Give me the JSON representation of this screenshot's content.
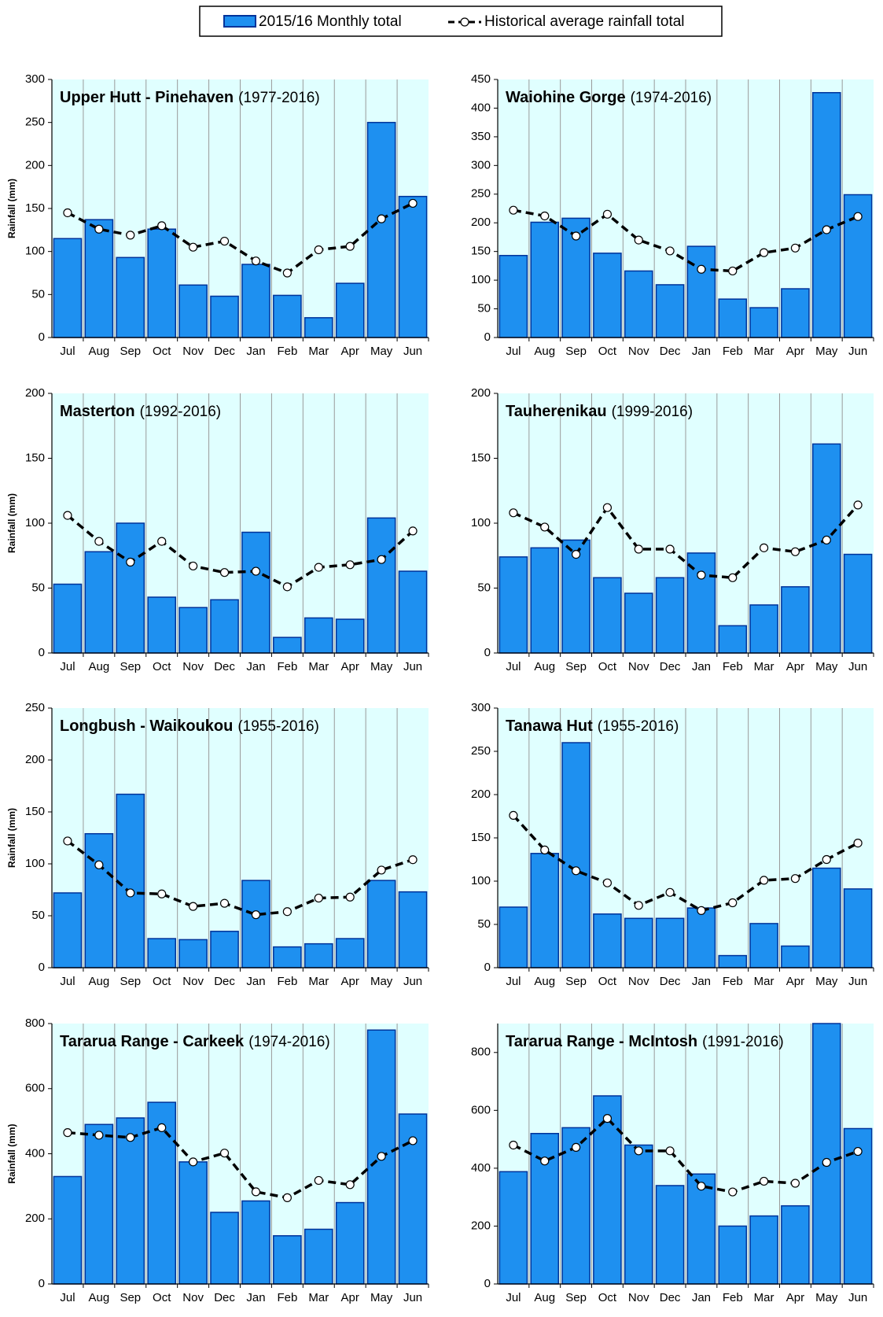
{
  "chart_data": [
    {
      "type": "bar",
      "title": "Upper Hutt - Pinehaven",
      "period": "(1977-2016)",
      "ylabel": "Rainfall (mm)",
      "categories": [
        "Jul",
        "Aug",
        "Sep",
        "Oct",
        "Nov",
        "Dec",
        "Jan",
        "Feb",
        "Mar",
        "Apr",
        "May",
        "Jun"
      ],
      "ylim": [
        0,
        300
      ],
      "yticks": [
        0,
        50,
        100,
        150,
        200,
        250,
        300
      ],
      "series": [
        {
          "name": "2015/16 Monthly total",
          "type": "bar",
          "color": "#1e90f0",
          "values": [
            115,
            137,
            93,
            126,
            61,
            48,
            85,
            49,
            23,
            63,
            250,
            164
          ]
        },
        {
          "name": "Historical average rainfall total",
          "type": "line",
          "color": "#000000",
          "values": [
            145,
            126,
            119,
            130,
            105,
            112,
            89,
            75,
            102,
            106,
            138,
            156
          ]
        }
      ]
    },
    {
      "type": "bar",
      "title": "Waiohine Gorge",
      "period": "(1974-2016)",
      "categories": [
        "Jul",
        "Aug",
        "Sep",
        "Oct",
        "Nov",
        "Dec",
        "Jan",
        "Feb",
        "Mar",
        "Apr",
        "May",
        "Jun"
      ],
      "ylim": [
        0,
        450
      ],
      "yticks": [
        0,
        50,
        100,
        150,
        200,
        250,
        300,
        350,
        400,
        450
      ],
      "series": [
        {
          "type": "bar",
          "color": "#1e90f0",
          "values": [
            143,
            201,
            208,
            147,
            116,
            92,
            159,
            67,
            52,
            85,
            427,
            249
          ]
        },
        {
          "type": "line",
          "color": "#000000",
          "values": [
            222,
            212,
            177,
            215,
            170,
            151,
            119,
            116,
            148,
            156,
            188,
            211
          ]
        }
      ]
    },
    {
      "type": "bar",
      "title": "Masterton",
      "period": "(1992-2016)",
      "ylabel": "Rainfall (mm)",
      "categories": [
        "Jul",
        "Aug",
        "Sep",
        "Oct",
        "Nov",
        "Dec",
        "Jan",
        "Feb",
        "Mar",
        "Apr",
        "May",
        "Jun"
      ],
      "ylim": [
        0,
        200
      ],
      "yticks": [
        0,
        50,
        100,
        150,
        200
      ],
      "series": [
        {
          "type": "bar",
          "color": "#1e90f0",
          "values": [
            53,
            78,
            100,
            43,
            35,
            41,
            93,
            12,
            27,
            26,
            104,
            63
          ]
        },
        {
          "type": "line",
          "color": "#000000",
          "values": [
            106,
            86,
            70,
            86,
            67,
            62,
            63,
            51,
            66,
            68,
            72,
            94
          ]
        }
      ]
    },
    {
      "type": "bar",
      "title": "Tauherenikau",
      "period": "(1999-2016)",
      "categories": [
        "Jul",
        "Aug",
        "Sep",
        "Oct",
        "Nov",
        "Dec",
        "Jan",
        "Feb",
        "Mar",
        "Apr",
        "May",
        "Jun"
      ],
      "ylim": [
        0,
        200
      ],
      "yticks": [
        0,
        50,
        100,
        150,
        200
      ],
      "series": [
        {
          "type": "bar",
          "color": "#1e90f0",
          "values": [
            74,
            81,
            87,
            58,
            46,
            58,
            77,
            21,
            37,
            51,
            161,
            76
          ]
        },
        {
          "type": "line",
          "color": "#000000",
          "values": [
            108,
            97,
            76,
            112,
            80,
            80,
            60,
            58,
            81,
            78,
            87,
            114
          ]
        }
      ]
    },
    {
      "type": "bar",
      "title": "Longbush - Waikoukou",
      "period": "(1955-2016)",
      "ylabel": "Rainfall (mm)",
      "categories": [
        "Jul",
        "Aug",
        "Sep",
        "Oct",
        "Nov",
        "Dec",
        "Jan",
        "Feb",
        "Mar",
        "Apr",
        "May",
        "Jun"
      ],
      "ylim": [
        0,
        250
      ],
      "yticks": [
        0,
        50,
        100,
        150,
        200,
        250
      ],
      "series": [
        {
          "type": "bar",
          "color": "#1e90f0",
          "values": [
            72,
            129,
            167,
            28,
            27,
            35,
            84,
            20,
            23,
            28,
            84,
            73
          ]
        },
        {
          "type": "line",
          "color": "#000000",
          "values": [
            122,
            99,
            72,
            71,
            59,
            62,
            51,
            54,
            67,
            68,
            94,
            104
          ]
        }
      ]
    },
    {
      "type": "bar",
      "title": "Tanawa Hut",
      "period": "(1955-2016)",
      "categories": [
        "Jul",
        "Aug",
        "Sep",
        "Oct",
        "Nov",
        "Dec",
        "Jan",
        "Feb",
        "Mar",
        "Apr",
        "May",
        "Jun"
      ],
      "ylim": [
        0,
        300
      ],
      "yticks": [
        0,
        50,
        100,
        150,
        200,
        250,
        300
      ],
      "series": [
        {
          "type": "bar",
          "color": "#1e90f0",
          "values": [
            70,
            132,
            260,
            62,
            57,
            57,
            69,
            14,
            51,
            25,
            115,
            91
          ]
        },
        {
          "type": "line",
          "color": "#000000",
          "values": [
            176,
            136,
            112,
            98,
            72,
            87,
            66,
            75,
            101,
            103,
            125,
            144
          ]
        }
      ]
    },
    {
      "type": "bar",
      "title": "Tararua Range - Carkeek",
      "period": "(1974-2016)",
      "ylabel": "Rainfall (mm)",
      "categories": [
        "Jul",
        "Aug",
        "Sep",
        "Oct",
        "Nov",
        "Dec",
        "Jan",
        "Feb",
        "Mar",
        "Apr",
        "May",
        "Jun"
      ],
      "ylim": [
        0,
        800
      ],
      "yticks": [
        0,
        200,
        400,
        600,
        800
      ],
      "series": [
        {
          "type": "bar",
          "color": "#1e90f0",
          "values": [
            330,
            490,
            510,
            558,
            375,
            220,
            255,
            148,
            168,
            250,
            780,
            522
          ]
        },
        {
          "type": "line",
          "color": "#000000",
          "values": [
            465,
            457,
            450,
            480,
            375,
            402,
            283,
            265,
            318,
            305,
            392,
            440
          ]
        }
      ]
    },
    {
      "type": "bar",
      "title": "Tararua Range - McIntosh",
      "period": "(1991-2016)",
      "categories": [
        "Jul",
        "Aug",
        "Sep",
        "Oct",
        "Nov",
        "Dec",
        "Jan",
        "Feb",
        "Mar",
        "Apr",
        "May",
        "Jun"
      ],
      "ylim": [
        0,
        900
      ],
      "yticks": [
        0,
        200,
        400,
        600,
        800
      ],
      "series": [
        {
          "type": "bar",
          "color": "#1e90f0",
          "values": [
            388,
            520,
            540,
            650,
            480,
            340,
            380,
            200,
            235,
            270,
            900,
            537
          ]
        },
        {
          "type": "line",
          "color": "#000000",
          "values": [
            480,
            425,
            472,
            572,
            460,
            460,
            338,
            318,
            355,
            348,
            420,
            458
          ]
        }
      ]
    }
  ]
}
